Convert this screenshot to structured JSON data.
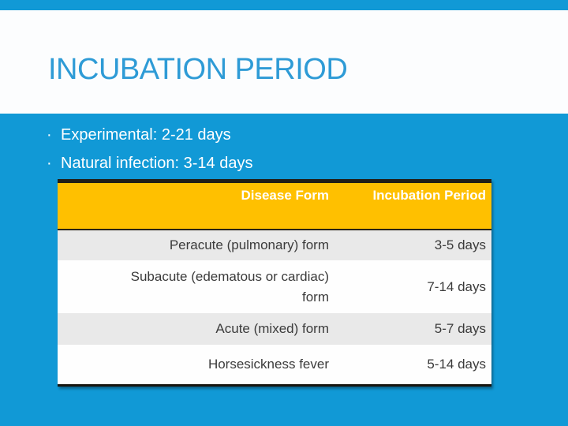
{
  "slide": {
    "title": "INCUBATION PERIOD",
    "bullet_char": "·",
    "bullets": [
      "Experimental: 2-21 days",
      "Natural infection: 3-14 days"
    ],
    "table": {
      "headers": [
        "Disease Form",
        "Incubation Period"
      ],
      "rows": [
        {
          "form": "Peracute (pulmonary) form",
          "period": "3-5 days"
        },
        {
          "form": "Subacute (edematous or cardiac)\nform",
          "period": "7-14 days"
        },
        {
          "form": "Acute (mixed) form",
          "period": "5-7 days"
        },
        {
          "form": "Horsesickness fever",
          "period": "5-14 days"
        }
      ]
    },
    "colors": {
      "background_blue": "#1199d6",
      "title_blue": "#2e9bd6",
      "header_yellow": "#ffc000",
      "header_text": "#ffffff",
      "row_gray": "#e9e9e9",
      "row_white": "#fefefe",
      "border_dark": "#221f17",
      "cell_text": "#3b3b3b"
    }
  }
}
